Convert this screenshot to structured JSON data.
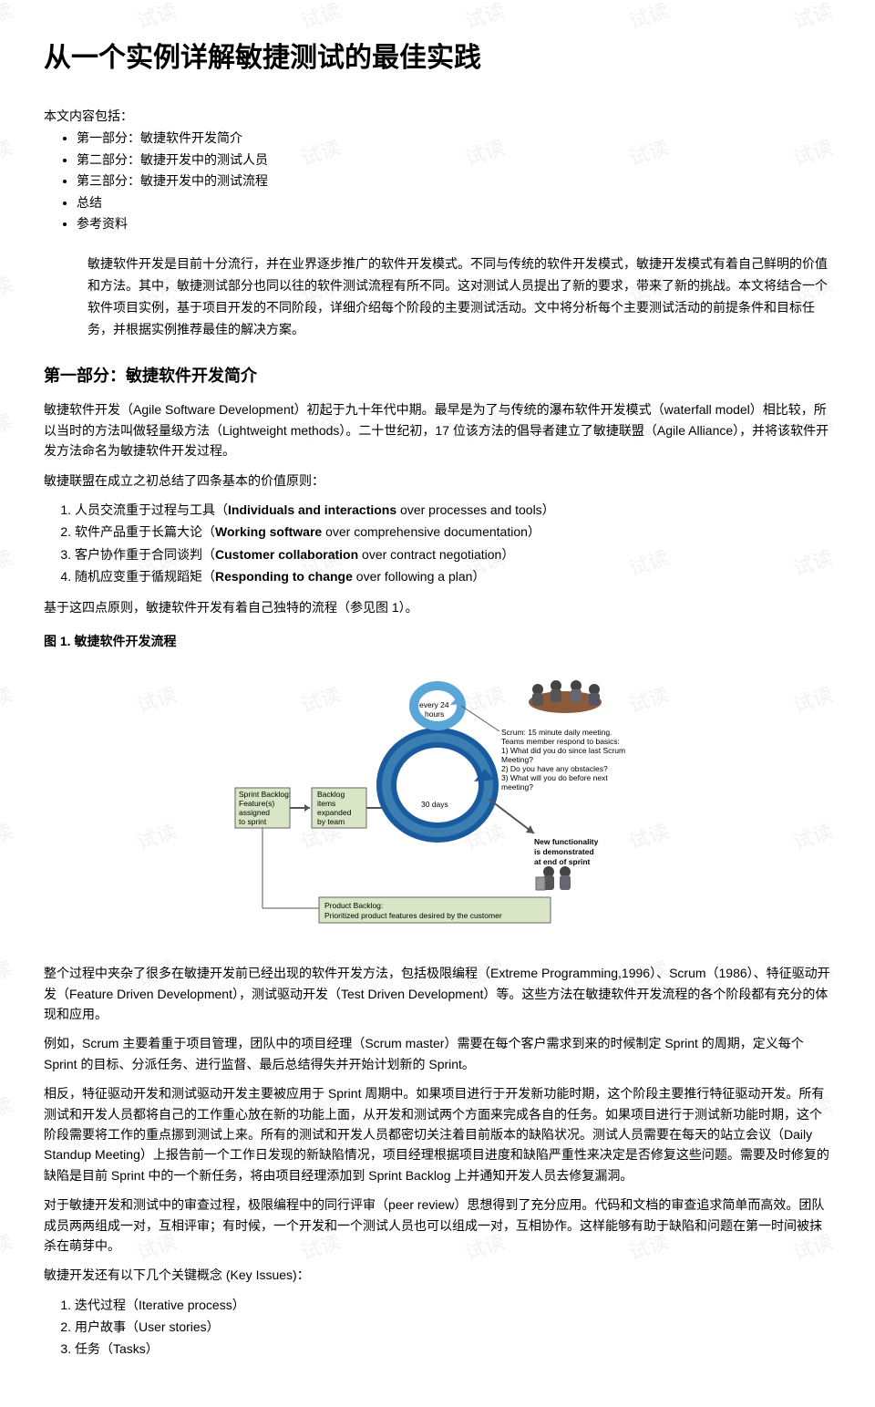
{
  "watermark_text": "试读",
  "title": "从一个实例详解敏捷测试的最佳实践",
  "toc": {
    "label": "本文内容包括：",
    "items": [
      "第一部分：敏捷软件开发简介",
      "第二部分：敏捷开发中的测试人员",
      "第三部分：敏捷开发中的测试流程",
      "总结",
      "参考资料"
    ]
  },
  "intro": "敏捷软件开发是目前十分流行，并在业界逐步推广的软件开发模式。不同与传统的软件开发模式，敏捷开发模式有着自己鲜明的价值和方法。其中，敏捷测试部分也同以往的软件测试流程有所不同。这对测试人员提出了新的要求，带来了新的挑战。本文将结合一个软件项目实例，基于项目开发的不同阶段，详细介绍每个阶段的主要测试活动。文中将分析每个主要测试活动的前提条件和目标任务，并根据实例推荐最佳的解决方案。",
  "section1": {
    "heading": "第一部分：敏捷软件开发简介",
    "p1": "敏捷软件开发（Agile Software Development）初起于九十年代中期。最早是为了与传统的瀑布软件开发模式（waterfall model）相比较，所以当时的方法叫做轻量级方法（Lightweight methods）。二十世纪初，17 位该方法的倡导者建立了敏捷联盟（Agile Alliance），并将该软件开发方法命名为敏捷软件开发过程。",
    "p2": "敏捷联盟在成立之初总结了四条基本的价值原则：",
    "principles": [
      {
        "zh": "人员交流重于过程与工具（",
        "en_b": "Individuals and interactions",
        "en_rest": " over processes and tools）"
      },
      {
        "zh": "软件产品重于长篇大论（",
        "en_b": "Working software",
        "en_rest": " over comprehensive documentation）"
      },
      {
        "zh": "客户协作重于合同谈判（",
        "en_b": "Customer collaboration",
        "en_rest": " over contract negotiation）"
      },
      {
        "zh": "随机应变重于循规蹈矩（",
        "en_b": "Responding to change",
        "en_rest": " over following a plan）"
      }
    ],
    "p3": "基于这四点原则，敏捷软件开发有着自己独特的流程（参见图 1）。",
    "fig_caption": "图 1. 敏捷软件开发流程",
    "p4": "整个过程中夹杂了很多在敏捷开发前已经出现的软件开发方法，包括极限编程（Extreme Programming,1996）、Scrum（1986）、特征驱动开发（Feature Driven Development），测试驱动开发（Test Driven Development）等。这些方法在敏捷软件开发流程的各个阶段都有充分的体现和应用。",
    "p5": "例如，Scrum 主要着重于项目管理，团队中的项目经理（Scrum master）需要在每个客户需求到来的时候制定 Sprint 的周期，定义每个 Sprint 的目标、分派任务、进行监督、最后总结得失并开始计划新的 Sprint。",
    "p6": "相反，特征驱动开发和测试驱动开发主要被应用于 Sprint 周期中。如果项目进行于开发新功能时期，这个阶段主要推行特征驱动开发。所有测试和开发人员都将自己的工作重心放在新的功能上面，从开发和测试两个方面来完成各自的任务。如果项目进行于测试新功能时期，这个阶段需要将工作的重点挪到测试上来。所有的测试和开发人员都密切关注着目前版本的缺陷状况。测试人员需要在每天的站立会议（Daily Standup Meeting）上报告前一个工作日发现的新缺陷情况，项目经理根据项目进度和缺陷严重性来决定是否修复这些问题。需要及时修复的缺陷是目前 Sprint 中的一个新任务，将由项目经理添加到 Sprint Backlog 上并通知开发人员去修复漏洞。",
    "p7": "对于敏捷开发和测试中的审查过程，极限编程中的同行评审（peer review）思想得到了充分应用。代码和文档的审查追求简单而高效。团队成员两两组成一对，互相评审；有时候，一个开发和一个测试人员也可以组成一对，互相协作。这样能够有助于缺陷和问题在第一时间被抹杀在萌芽中。",
    "p8": "敏捷开发还有以下几个关键概念 (Key Issues)：",
    "key_issues": [
      "迭代过程（Iterative process）",
      "用户故事（User stories）",
      "任务（Tasks）"
    ]
  },
  "figure": {
    "colors": {
      "box_fill": "#d9e6c6",
      "box_border": "#666",
      "arrow": "#555",
      "ring_out": "#1a5a9e",
      "ring_in": "#3b7fb2",
      "ring_small": "#5aa6d6",
      "people_dark": "#333",
      "table_fill": "#8a5a3a",
      "text": "#000"
    },
    "sprint_backlog": {
      "l1": "Sprint Backlog:",
      "l2": "Feature(s)",
      "l3": "assigned",
      "l4": "to sprint"
    },
    "backlog_items": {
      "l1": "Backlog",
      "l2": "items",
      "l3": "expanded",
      "l4": "by team"
    },
    "every24": "every 24",
    "hours": "hours",
    "days30": "30 days",
    "scrum_lines": [
      "Scrum: 15 minute daily meeting.",
      "Teams member respond to basics:",
      "1) What did you do since last Scrum",
      "Meeting?",
      "2) Do you have any obstacles?",
      "3) What will you do before next",
      "meeting?"
    ],
    "demo": {
      "l1": "New functionality",
      "l2": "is demonstrated",
      "l3": "at end of sprint"
    },
    "product_backlog": {
      "l1": "Product Backlog:",
      "l2": "Prioritized product features desired by the customer"
    }
  }
}
